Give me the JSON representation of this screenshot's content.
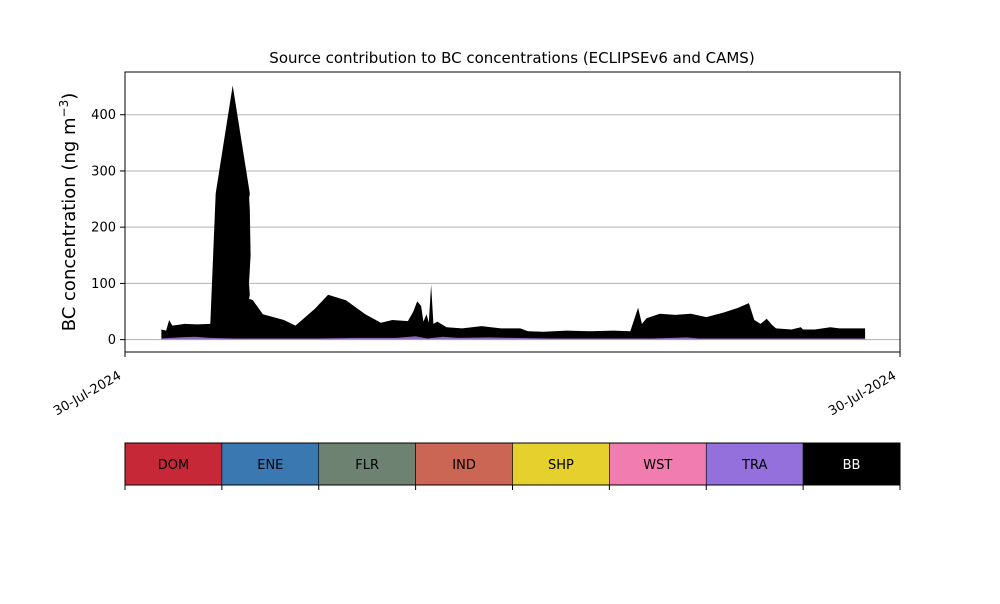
{
  "chart_data": {
    "type": "area",
    "title": "Source contribution to BC concentrations (ECLIPSEv6 and CAMS)",
    "ylabel": "BC concentration (ng m⁻³)",
    "xlabel": "",
    "x_tick_labels": [
      "30-Jul-2024",
      "30-Jul-2024"
    ],
    "y_ticks": [
      0,
      100,
      200,
      300,
      400
    ],
    "ylim": [
      -22,
      476
    ],
    "grid": "horizontal",
    "series_colors": {
      "BB": "#000000",
      "TRA": "#9370db",
      "WST": "#f17cb0"
    },
    "stacked_total_BB": [
      [
        0.047,
        18
      ],
      [
        0.053,
        16
      ],
      [
        0.057,
        35
      ],
      [
        0.061,
        25
      ],
      [
        0.067,
        26
      ],
      [
        0.077,
        28
      ],
      [
        0.093,
        27
      ],
      [
        0.11,
        28
      ],
      [
        0.117,
        260
      ],
      [
        0.139,
        452
      ],
      [
        0.161,
        260
      ],
      [
        0.16,
        250
      ],
      [
        0.16,
        260
      ],
      [
        0.161,
        255
      ],
      [
        0.16,
        258
      ],
      [
        0.161,
        230
      ],
      [
        0.162,
        150
      ],
      [
        0.16,
        100
      ],
      [
        0.161,
        80
      ],
      [
        0.16,
        72
      ],
      [
        0.161,
        72
      ],
      [
        0.161,
        73
      ],
      [
        0.162,
        72
      ],
      [
        0.16,
        72
      ],
      [
        0.161,
        72
      ],
      [
        0.161,
        73
      ],
      [
        0.162,
        72
      ],
      [
        0.163,
        71
      ],
      [
        0.163,
        72
      ],
      [
        0.16,
        72
      ],
      [
        0.161,
        72
      ],
      [
        0.16,
        72
      ],
      [
        0.161,
        72
      ],
      [
        0.16,
        72
      ],
      [
        0.161,
        72
      ],
      [
        0.161,
        72
      ],
      [
        0.162,
        71
      ],
      [
        0.162,
        72
      ],
      [
        0.16,
        72
      ],
      [
        0.161,
        72
      ],
      [
        0.16,
        72
      ],
      [
        0.161,
        72
      ],
      [
        0.161,
        72
      ],
      [
        0.16,
        72
      ],
      [
        0.161,
        72
      ],
      [
        0.161,
        72
      ],
      [
        0.16,
        72
      ],
      [
        0.161,
        72
      ],
      [
        0.161,
        72
      ],
      [
        0.16,
        72
      ],
      [
        0.161,
        72
      ],
      [
        0.162,
        72
      ],
      [
        0.161,
        72
      ],
      [
        0.16,
        72
      ],
      [
        0.161,
        72
      ],
      [
        0.165,
        70
      ],
      [
        0.178,
        45
      ],
      [
        0.205,
        35
      ],
      [
        0.22,
        25
      ],
      [
        0.245,
        55
      ],
      [
        0.262,
        80
      ],
      [
        0.285,
        70
      ],
      [
        0.31,
        45
      ],
      [
        0.33,
        30
      ],
      [
        0.345,
        35
      ],
      [
        0.365,
        33
      ],
      [
        0.372,
        50
      ],
      [
        0.377,
        68
      ],
      [
        0.382,
        60
      ],
      [
        0.385,
        32
      ],
      [
        0.389,
        45
      ],
      [
        0.392,
        30
      ],
      [
        0.395,
        98
      ],
      [
        0.398,
        28
      ],
      [
        0.403,
        32
      ],
      [
        0.415,
        22
      ],
      [
        0.435,
        20
      ],
      [
        0.46,
        24
      ],
      [
        0.485,
        20
      ],
      [
        0.51,
        20
      ],
      [
        0.52,
        15
      ],
      [
        0.54,
        14
      ],
      [
        0.57,
        16
      ],
      [
        0.6,
        15
      ],
      [
        0.63,
        16
      ],
      [
        0.652,
        15
      ],
      [
        0.662,
        57
      ],
      [
        0.667,
        28
      ],
      [
        0.673,
        38
      ],
      [
        0.69,
        46
      ],
      [
        0.71,
        44
      ],
      [
        0.73,
        46
      ],
      [
        0.75,
        40
      ],
      [
        0.772,
        48
      ],
      [
        0.79,
        56
      ],
      [
        0.805,
        65
      ],
      [
        0.812,
        35
      ],
      [
        0.82,
        28
      ],
      [
        0.828,
        37
      ],
      [
        0.835,
        26
      ],
      [
        0.84,
        20
      ],
      [
        0.86,
        18
      ],
      [
        0.872,
        22
      ],
      [
        0.875,
        18
      ],
      [
        0.89,
        18
      ],
      [
        0.91,
        22
      ],
      [
        0.922,
        20
      ],
      [
        0.955,
        20
      ]
    ],
    "stacked_total_TRA": [
      [
        0.047,
        2
      ],
      [
        0.07,
        4
      ],
      [
        0.09,
        5
      ],
      [
        0.11,
        3
      ],
      [
        0.14,
        2
      ],
      [
        0.2,
        2
      ],
      [
        0.25,
        2
      ],
      [
        0.3,
        3
      ],
      [
        0.35,
        3
      ],
      [
        0.375,
        6
      ],
      [
        0.39,
        2
      ],
      [
        0.41,
        5
      ],
      [
        0.43,
        3
      ],
      [
        0.47,
        4
      ],
      [
        0.5,
        3
      ],
      [
        0.55,
        2
      ],
      [
        0.6,
        2
      ],
      [
        0.68,
        2
      ],
      [
        0.725,
        4
      ],
      [
        0.74,
        2
      ],
      [
        0.8,
        2
      ],
      [
        0.9,
        2
      ],
      [
        0.955,
        2
      ]
    ],
    "legend": [
      "DOM",
      "ENE",
      "FLR",
      "IND",
      "SHP",
      "WST",
      "TRA",
      "BB"
    ],
    "legend_colors": [
      "#c62838",
      "#3a78b1",
      "#6e8272",
      "#cb6655",
      "#e6d02e",
      "#f17cb0",
      "#9370db",
      "#000000"
    ],
    "legend_text_colors": [
      "#000000",
      "#000000",
      "#000000",
      "#000000",
      "#000000",
      "#000000",
      "#000000",
      "#ffffff"
    ]
  }
}
